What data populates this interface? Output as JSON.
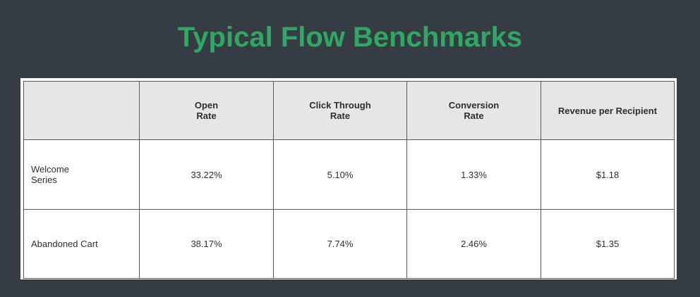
{
  "title": "Typical Flow Benchmarks",
  "colors": {
    "background": "#353c44",
    "title": "#2ea862",
    "header_bg": "#e6e6e8",
    "cell_bg": "#ffffff",
    "border": "#555a60"
  },
  "table": {
    "headers": [
      "",
      "Open\nRate",
      "Click Through\nRate",
      "Conversion\nRate",
      "Revenue per Recipient"
    ],
    "rows": [
      {
        "label": "Welcome\nSeries",
        "open_rate": "33.22%",
        "click_through_rate": "5.10%",
        "conversion_rate": "1.33%",
        "revenue_per_recipient": "$1.18"
      },
      {
        "label": "Abandoned Cart",
        "open_rate": "38.17%",
        "click_through_rate": "7.74%",
        "conversion_rate": "2.46%",
        "revenue_per_recipient": "$1.35"
      }
    ]
  }
}
